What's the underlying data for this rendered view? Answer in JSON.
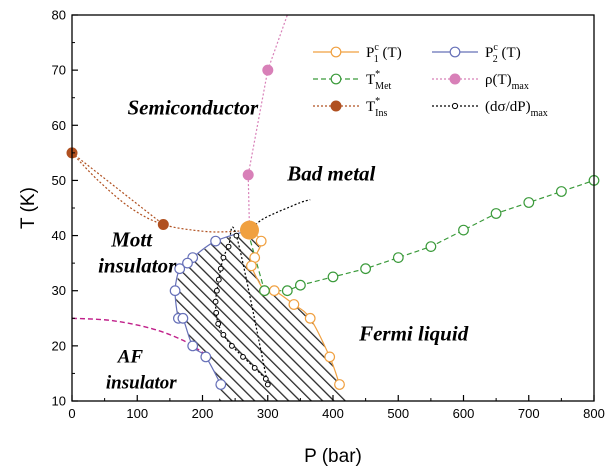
{
  "chart_data": {
    "type": "scatter",
    "xlabel": "P (bar)",
    "ylabel": "T (K)",
    "xlim": [
      0,
      800
    ],
    "ylim": [
      10,
      80
    ],
    "xticks": [
      "0",
      "100",
      "200",
      "300",
      "400",
      "500",
      "600",
      "700",
      "800"
    ],
    "yticks": [
      "10",
      "20",
      "30",
      "40",
      "50",
      "60",
      "70",
      "80"
    ],
    "grid": false,
    "legend_position": "top-right",
    "regions": [
      {
        "label": "Semiconductor",
        "x": 85,
        "y": 62
      },
      {
        "label": "Bad metal",
        "x": 330,
        "y": 50
      },
      {
        "label": "Mott",
        "x": 60,
        "y": 38
      },
      {
        "label": "insulator",
        "x": 40,
        "y": 33.3
      },
      {
        "label": "Fermi liquid",
        "x": 440,
        "y": 21
      },
      {
        "label": "AF",
        "x": 70,
        "y": 17
      },
      {
        "label": "insulator",
        "x": 52,
        "y": 12.3
      }
    ],
    "critical_point": {
      "x": 272,
      "y": 41,
      "color": "#f0a040"
    },
    "series": [
      {
        "name": "P",
        "legend": {
          "base": "P",
          "sup": "c",
          "sub": "1",
          "tail": " (T)"
        },
        "color": "#f0a040",
        "marker": "open-circle",
        "line": "solid",
        "x": [
          272,
          290,
          280,
          275,
          295,
          310,
          340,
          365,
          395,
          410
        ],
        "y": [
          41,
          39,
          36,
          34.5,
          30,
          30,
          27.5,
          25,
          18,
          13
        ]
      },
      {
        "name": "P",
        "legend": {
          "base": "P",
          "sup": "c",
          "sub": "2",
          "tail": " (T)"
        },
        "color": "#6670b8",
        "marker": "open-circle",
        "line": "solid",
        "x": [
          272,
          220,
          185,
          177,
          165,
          158,
          163,
          170,
          185,
          205,
          228
        ],
        "y": [
          41,
          39,
          36,
          35,
          34,
          30,
          25,
          25,
          20,
          18,
          13
        ]
      },
      {
        "name": "T",
        "legend": {
          "base": "T",
          "sup": "*",
          "sub": "Met",
          "tail": ""
        },
        "color": "#3a9a3a",
        "marker": "open-circle",
        "line": "dashed",
        "x": [
          270,
          295,
          330,
          350,
          400,
          450,
          500,
          550,
          600,
          650,
          700,
          750,
          800
        ],
        "y": [
          40.5,
          30,
          30,
          31,
          32.5,
          34,
          36,
          38,
          41,
          44,
          46,
          48,
          50
        ]
      },
      {
        "name": "ρ(T)",
        "legend": {
          "base": "ρ(T)",
          "sup": "",
          "sub": "max",
          "tail": ""
        },
        "color": "#d880b8",
        "marker": "filled-circle",
        "line": "dotted",
        "x": [
          272,
          270,
          300
        ],
        "y": [
          41,
          51,
          70
        ]
      },
      {
        "name": "T",
        "legend": {
          "base": "T",
          "sup": "*",
          "sub": "Ins",
          "tail": ""
        },
        "color": "#b05020",
        "marker": "filled-circle",
        "line": "dotted",
        "x": [
          0,
          140
        ],
        "y": [
          55,
          42
        ]
      },
      {
        "name": "(dσ/dP)",
        "legend": {
          "base": "(dσ/dP)",
          "sup": "",
          "sub": "max",
          "tail": ""
        },
        "color": "#000000",
        "marker": "small-open-circle",
        "line": "dotted",
        "x": [
          300,
          252,
          240,
          232,
          228,
          225,
          222,
          220,
          221,
          224,
          232,
          245,
          262,
          280,
          297
        ],
        "y": [
          13,
          40,
          38,
          36,
          34,
          32,
          30,
          28,
          26,
          24,
          22,
          20,
          18,
          16,
          14
        ]
      }
    ],
    "guide_curves": {
      "ins_boundary": {
        "color": "#b05020",
        "x": [
          0,
          40,
          90,
          140,
          200,
          240,
          272
        ],
        "y": [
          55,
          50,
          45,
          42,
          40.8,
          40.7,
          41
        ]
      },
      "rho_upper": {
        "color": "#d880b8",
        "x": [
          300,
          330
        ],
        "y": [
          70,
          80
        ]
      },
      "dsdp_upper": {
        "color": "#000000",
        "x": [
          272,
          290,
          310,
          330,
          350,
          365
        ],
        "y": [
          41,
          42.8,
          44,
          45,
          46,
          46.5
        ]
      },
      "af_boundary": {
        "color": "#c0208a",
        "x": [
          0,
          60,
          120,
          170,
          210
        ],
        "y": [
          25,
          24.6,
          23.2,
          21,
          18
        ]
      }
    }
  }
}
